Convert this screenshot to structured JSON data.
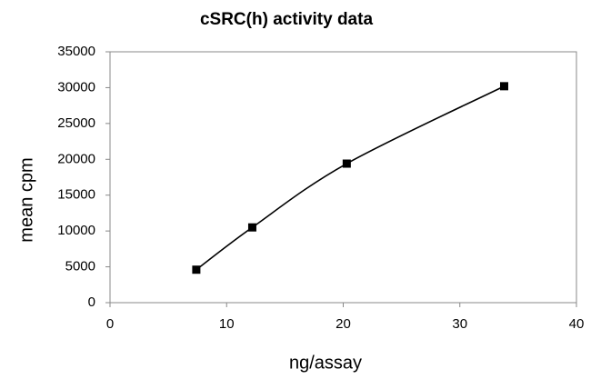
{
  "chart_data": {
    "type": "line",
    "title": "cSRC(h) activity data",
    "x_label": "ng/assay",
    "y_label": "mean cpm",
    "x": [
      7.4,
      12.2,
      20.3,
      33.8
    ],
    "series": [
      {
        "color": "#000000",
        "values": [
          4600,
          10500,
          19400,
          30200
        ]
      }
    ],
    "xlim": [
      0,
      40
    ],
    "xticks": [
      0,
      10,
      20,
      30,
      40
    ],
    "ylim": [
      0,
      35000
    ],
    "yticks": [
      0,
      5000,
      10000,
      15000,
      20000,
      25000,
      30000,
      35000
    ],
    "grid": false
  }
}
